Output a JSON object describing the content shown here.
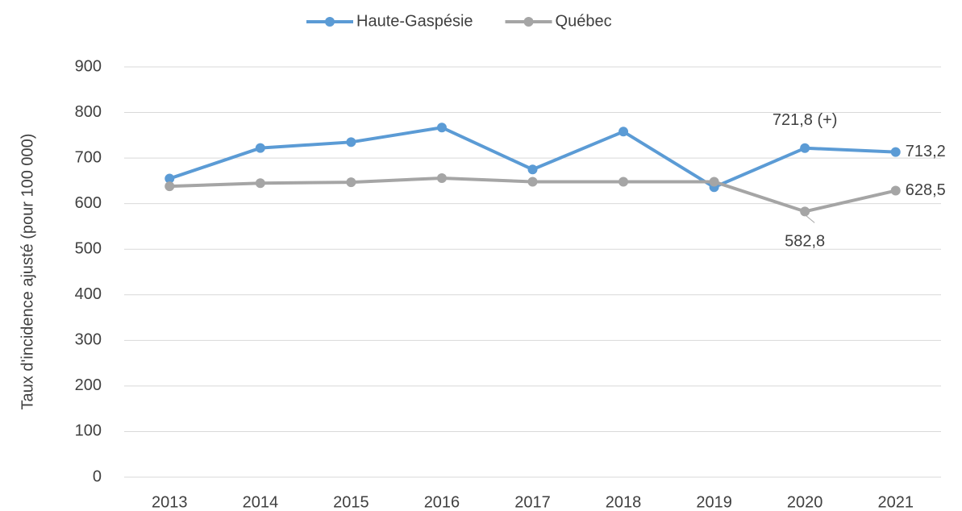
{
  "chart_data": {
    "type": "line",
    "y_axis_label": "Taux d'incidence ajusté (pour 100 000)",
    "categories": [
      "2013",
      "2014",
      "2015",
      "2016",
      "2017",
      "2018",
      "2019",
      "2020",
      "2021"
    ],
    "series": [
      {
        "name": "Haute-Gaspésie",
        "color": "#5b9bd5",
        "values": [
          655,
          722,
          735,
          767,
          675,
          758,
          636,
          721.8,
          713.2
        ],
        "value_labels": [
          null,
          null,
          null,
          null,
          null,
          null,
          null,
          "721,8 (+)",
          "713,2"
        ]
      },
      {
        "name": "Québec",
        "color": "#a5a5a5",
        "values": [
          638,
          645,
          647,
          656,
          648,
          648,
          648,
          582.8,
          628.5
        ],
        "value_labels": [
          null,
          null,
          null,
          null,
          null,
          null,
          null,
          "582,8",
          "628,5"
        ]
      }
    ],
    "ylim": [
      0,
      900
    ],
    "yticks": [
      0,
      100,
      200,
      300,
      400,
      500,
      600,
      700,
      800,
      900
    ],
    "grid": true,
    "legend": "top"
  }
}
